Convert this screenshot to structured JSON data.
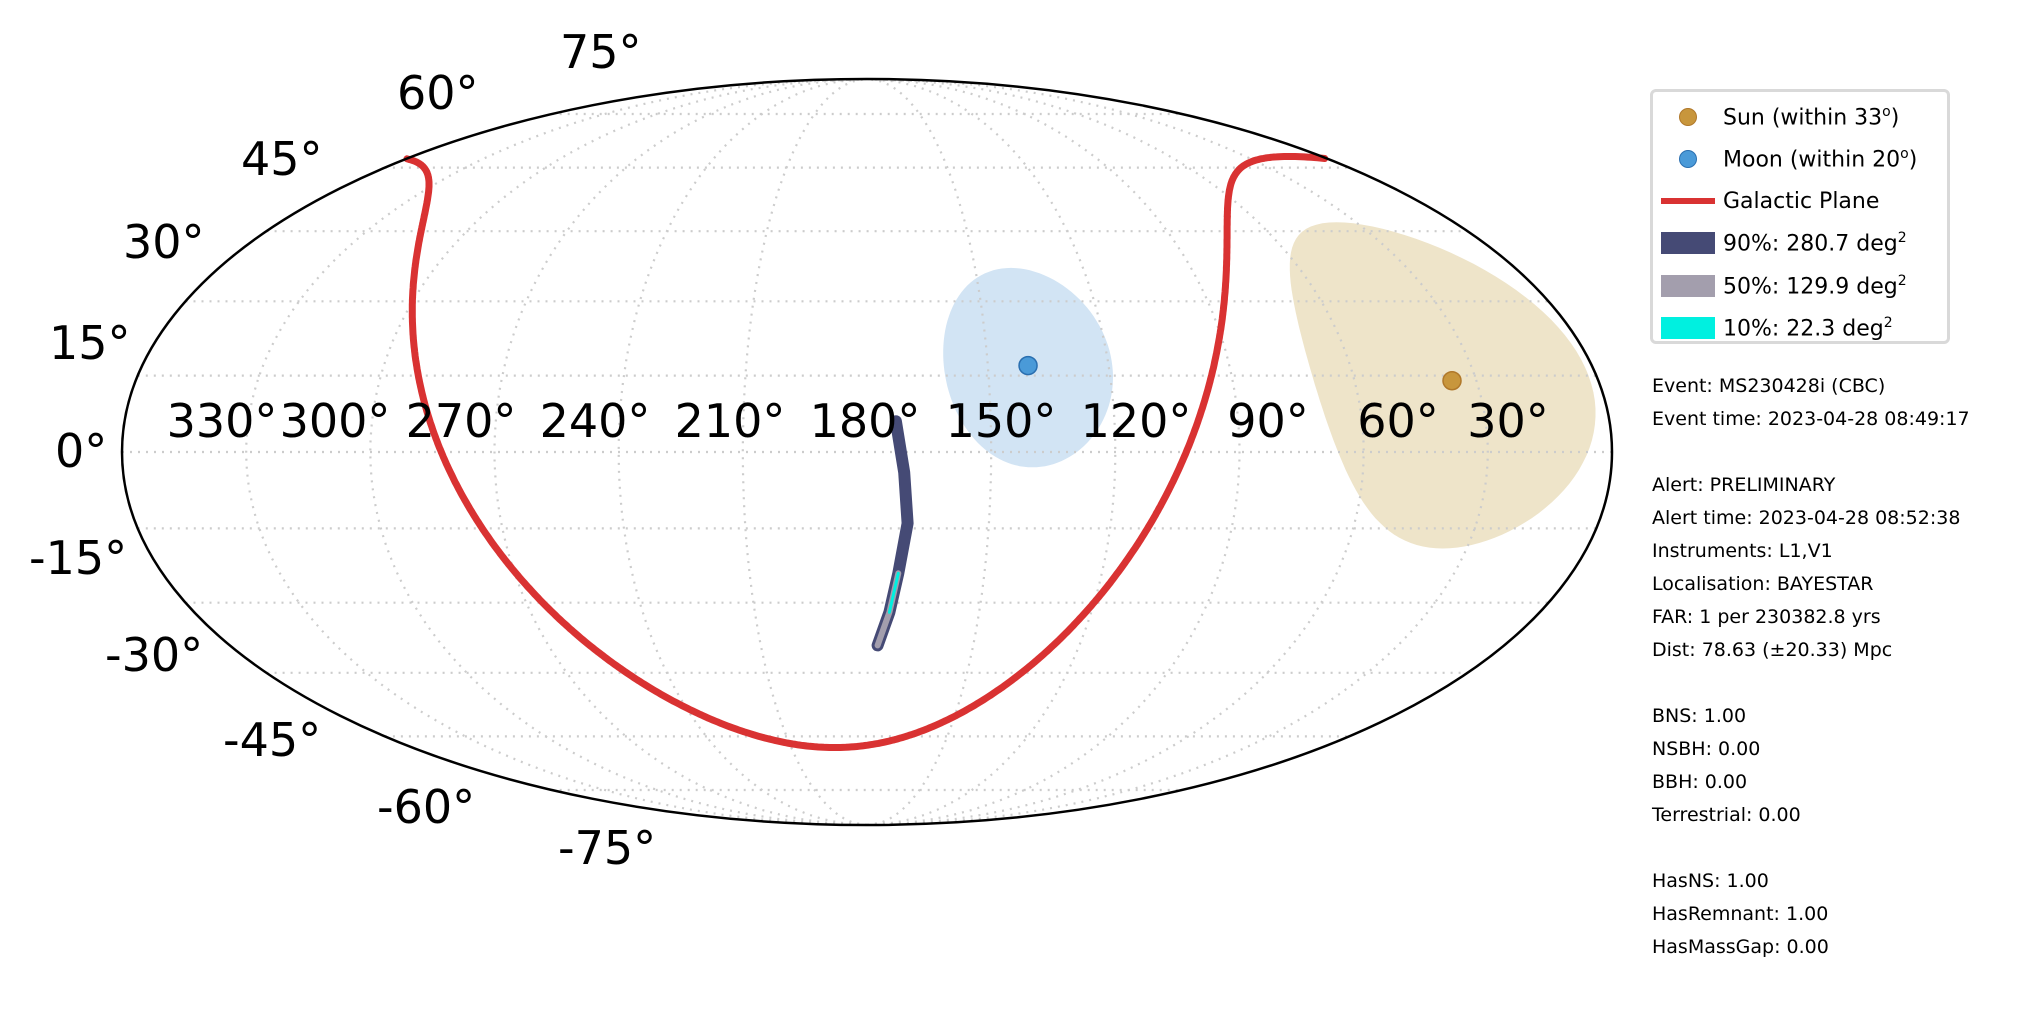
{
  "map": {
    "projection": "mollweide",
    "coordinate_frame": "equatorial RA/Dec",
    "lat_labels": [
      "75°",
      "60°",
      "45°",
      "30°",
      "15°",
      "0°",
      "-15°",
      "-30°",
      "-45°",
      "-60°",
      "-75°"
    ],
    "lon_labels": [
      "330°",
      "300°",
      "270°",
      "240°",
      "210°",
      "180°",
      "150°",
      "120°",
      "90°",
      "60°",
      "30°"
    ],
    "grid": "dotted",
    "colors": {
      "sun": "#c8963c",
      "sun_region": "#eee4c9",
      "moon": "#4a9ad8",
      "moon_region": "#d2e4f4",
      "galactic_plane": "#d93232",
      "cl90": "#454a75",
      "cl50": "#a39ead",
      "cl10": "#00f0e0"
    },
    "sun": {
      "ra": 36,
      "dec": 14,
      "exclusion_radius_deg": 33
    },
    "moon": {
      "ra": 140,
      "dec": 17,
      "exclusion_radius_deg": 20
    },
    "skymap_arc": [
      {
        "ra": 173,
        "dec": 6
      },
      {
        "ra": 171,
        "dec": -4
      },
      {
        "ra": 170,
        "dec": -14
      },
      {
        "ra": 172,
        "dec": -24
      },
      {
        "ra": 174,
        "dec": -32
      },
      {
        "ra": 177,
        "dec": -39
      }
    ]
  },
  "legend": {
    "sun": "Sun (within 33",
    "moon": "Moon (within 20",
    "degree_symbol": "o",
    "close_paren": ")",
    "galactic": "Galactic Plane",
    "cl90": "90%: 280.7 deg",
    "cl50": "50%: 129.9 deg",
    "cl10": "10%: 22.3 deg",
    "squared": "2"
  },
  "info": {
    "event": "Event: MS230428i (CBC)",
    "event_time": "Event time: 2023-04-28 08:49:17",
    "alert": "Alert: PRELIMINARY",
    "alert_time": "Alert time: 2023-04-28 08:52:38",
    "instruments": "Instruments: L1,V1",
    "localisation": "Localisation: BAYESTAR",
    "far": "FAR: 1 per 230382.8 yrs",
    "dist": "Dist: 78.63 (±20.33) Mpc",
    "bns": "BNS: 1.00",
    "nsbh": "NSBH: 0.00",
    "bbh": "BBH: 0.00",
    "terrestrial": "Terrestrial: 0.00",
    "hasns": "HasNS: 1.00",
    "hasremnant": "HasRemnant: 1.00",
    "hasmassgap": "HasMassGap: 0.00"
  }
}
